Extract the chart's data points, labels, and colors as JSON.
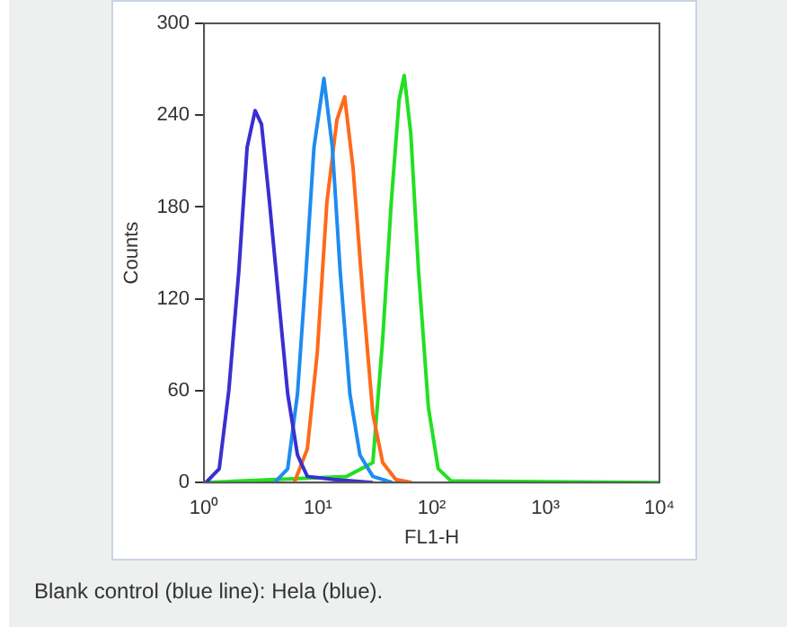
{
  "chart_data": {
    "type": "line",
    "xlabel": "FL1-H",
    "ylabel": "Counts",
    "log": "x",
    "grid": false,
    "legend": false,
    "marker": "none",
    "line_style": "solid",
    "xlim": [
      1,
      10000
    ],
    "xticks": [
      {
        "value": 1,
        "label": "10⁰"
      },
      {
        "value": 10,
        "label": "10¹"
      },
      {
        "value": 100,
        "label": "10²"
      },
      {
        "value": 1000,
        "label": "10³"
      },
      {
        "value": 10000,
        "label": "10⁴"
      }
    ],
    "ylim": [
      0,
      300
    ],
    "yticks": [
      0,
      60,
      120,
      180,
      240,
      300
    ],
    "annotations": [
      "Blank control (blue line): Hela (blue)."
    ],
    "series": [
      {
        "color": "#3a2fd0",
        "x": [
          1.04,
          1.36,
          1.65,
          2.02,
          2.39,
          2.81,
          3.2,
          3.76,
          4.46,
          5.43,
          6.62,
          8.08,
          13.7,
          30.4
        ],
        "values": [
          0,
          9,
          60,
          138,
          219,
          243,
          234,
          183,
          125,
          58,
          18,
          4,
          2,
          0
        ]
      },
      {
        "color": "#1e8cf0",
        "x": [
          4.17,
          5.43,
          6.62,
          7.87,
          9.24,
          11.3,
          13.4,
          15.7,
          19.1,
          23.4,
          30.4,
          45
        ],
        "values": [
          0,
          9,
          58,
          138,
          219,
          264,
          219,
          138,
          58,
          18,
          4,
          0
        ]
      },
      {
        "color": "#ff6a1a",
        "x": [
          6.2,
          8.08,
          9.88,
          12,
          14.7,
          17.2,
          20.4,
          24.9,
          30.4,
          37.1,
          48.3,
          67
        ],
        "values": [
          0,
          22,
          85,
          183,
          237,
          252,
          205,
          121,
          45,
          13,
          2,
          0
        ]
      },
      {
        "color": "#22e022",
        "x": [
          1,
          17.9,
          30.4,
          37.1,
          44.1,
          51.7,
          57.3,
          65.5,
          76.6,
          93.5,
          114,
          148,
          10000
        ],
        "values": [
          0,
          4,
          13,
          94,
          183,
          250,
          266,
          228,
          138,
          49,
          9,
          1,
          0
        ]
      }
    ]
  }
}
